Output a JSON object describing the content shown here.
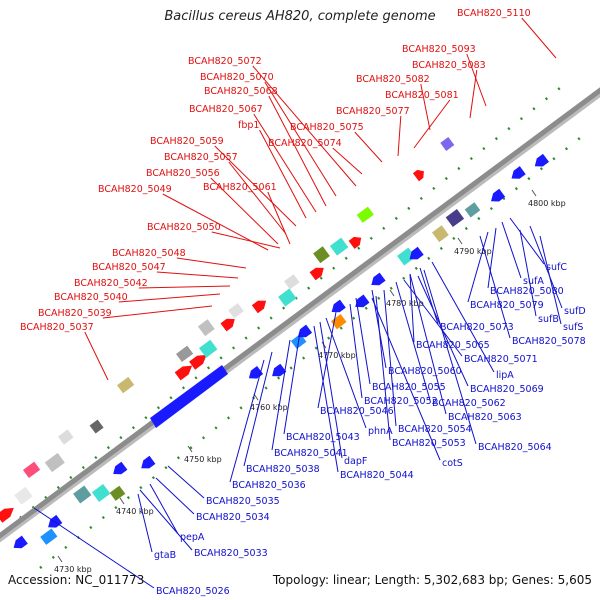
{
  "title": "Bacillus cereus AH820, complete genome",
  "accession": "Accession: NC_011773",
  "topology": "Topology: linear; Length: 5,302,683 bp; Genes: 5,605",
  "colors": {
    "backbone": "#8c8c8c",
    "forward_label": "#e01010",
    "reverse_label": "#1010cc",
    "forward_gene": "#ff1010",
    "reverse_gene": "#1a1aff",
    "dots": "#2e8b2e"
  },
  "ticks": [
    "4730 kbp",
    "4740 kbp",
    "4750 kbp",
    "4760 kbp",
    "4770 kbp",
    "4780 kbp",
    "4790 kbp",
    "4800 kbp"
  ],
  "forward_labels": [
    "BCAH820_5110",
    "BCAH820_5093",
    "BCAH820_5083",
    "BCAH820_5082",
    "BCAH820_5081",
    "BCAH820_5077",
    "BCAH820_5075",
    "BCAH820_5074",
    "BCAH820_5072",
    "BCAH820_5070",
    "BCAH820_5068",
    "BCAH820_5067",
    "fbp1",
    "BCAH820_5059",
    "BCAH820_5057",
    "BCAH820_5056",
    "BCAH820_5061",
    "BCAH820_5049",
    "BCAH820_5050",
    "BCAH820_5048",
    "BCAH820_5047",
    "BCAH820_5042",
    "BCAH820_5040",
    "BCAH820_5039",
    "BCAH820_5037"
  ],
  "reverse_labels": [
    "sufC",
    "sufA",
    "BCAH820_5080",
    "BCAH820_5079",
    "sufD",
    "sufB",
    "sufS",
    "BCAH820_5078",
    "BCAH820_5073",
    "BCAH820_5065",
    "BCAH820_5071",
    "lipA",
    "BCAH820_5060",
    "BCAH820_5069",
    "BCAH820_5055",
    "BCAH820_5052",
    "BCAH820_5062",
    "BCAH820_5046",
    "BCAH820_5054",
    "BCAH820_5063",
    "phnA",
    "BCAH820_5053",
    "BCAH820_5043",
    "BCAH820_5064",
    "dapF",
    "BCAH820_5041",
    "cotS",
    "BCAH820_5038",
    "BCAH820_5044",
    "BCAH820_5036",
    "BCAH820_5035",
    "BCAH820_5034",
    "pepA",
    "BCAH820_5033",
    "gtaB",
    "BCAH820_5026"
  ]
}
